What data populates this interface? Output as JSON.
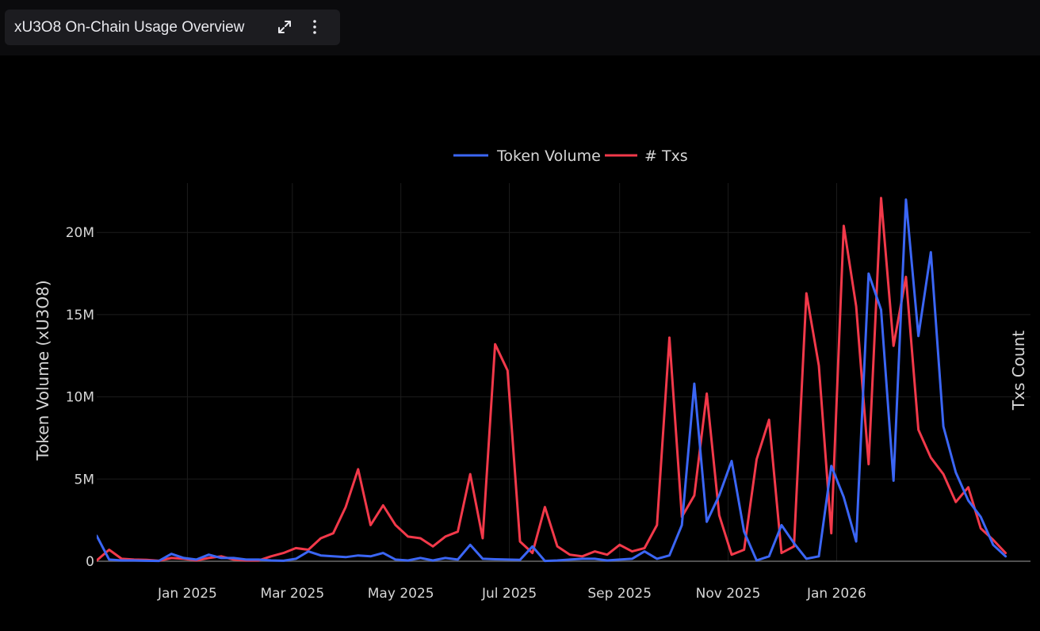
{
  "window": {
    "title": "xU3O8 On-Chain Usage Overview",
    "expand_icon": "expand-icon",
    "menu_icon": "vertical-dots-icon"
  },
  "colors": {
    "background": "#000000",
    "token_volume": "#3b66f5",
    "txs": "#f2394a",
    "text": "#d6d6d6"
  },
  "chart_data": {
    "type": "line",
    "legend_position": "top-center",
    "grid": true,
    "ylabel": "Token Volume (xU3O8)",
    "y2label": "Txs Count",
    "xlim": [
      "2024-11-11",
      "2026-04-20"
    ],
    "ylim": [
      0,
      23000000
    ],
    "y_ticks": [
      0,
      5000000,
      10000000,
      15000000,
      20000000
    ],
    "y_tick_labels": [
      "0",
      "5M",
      "10M",
      "15M",
      "20M"
    ],
    "x_ticks": [
      "2025-01-01",
      "2025-03-01",
      "2025-05-01",
      "2025-07-01",
      "2025-09-01",
      "2025-11-01",
      "2026-01-01"
    ],
    "x_tick_labels": [
      "Jan 2025",
      "Mar 2025",
      "May 2025",
      "Jul 2025",
      "Sep 2025",
      "Nov 2025",
      "Jan 2026"
    ],
    "series": [
      {
        "name": "Token Volume",
        "color": "#3b66f5",
        "x": [
          "2024-11-11",
          "2024-11-18",
          "2024-11-25",
          "2024-12-02",
          "2024-12-09",
          "2024-12-16",
          "2024-12-23",
          "2024-12-30",
          "2025-01-06",
          "2025-01-13",
          "2025-01-20",
          "2025-01-27",
          "2025-02-03",
          "2025-02-10",
          "2025-02-17",
          "2025-02-24",
          "2025-03-03",
          "2025-03-10",
          "2025-03-17",
          "2025-03-24",
          "2025-03-31",
          "2025-04-07",
          "2025-04-14",
          "2025-04-21",
          "2025-04-28",
          "2025-05-05",
          "2025-05-12",
          "2025-05-19",
          "2025-05-26",
          "2025-06-02",
          "2025-06-09",
          "2025-06-16",
          "2025-06-23",
          "2025-06-30",
          "2025-07-07",
          "2025-07-14",
          "2025-07-21",
          "2025-07-28",
          "2025-08-04",
          "2025-08-11",
          "2025-08-18",
          "2025-08-25",
          "2025-09-01",
          "2025-09-08",
          "2025-09-15",
          "2025-09-22",
          "2025-09-29",
          "2025-10-06",
          "2025-10-13",
          "2025-10-20",
          "2025-10-27",
          "2025-11-03",
          "2025-11-10",
          "2025-11-17",
          "2025-11-24",
          "2025-12-01",
          "2025-12-08",
          "2025-12-15",
          "2025-12-22",
          "2025-12-29",
          "2026-01-05",
          "2026-01-12",
          "2026-01-19",
          "2026-01-26",
          "2026-02-02",
          "2026-02-09",
          "2026-02-16",
          "2026-02-23",
          "2026-03-02",
          "2026-03-09",
          "2026-03-16",
          "2026-03-23",
          "2026-03-30",
          "2026-04-06"
        ],
        "values": [
          1550000,
          100000,
          50000,
          50000,
          30000,
          20000,
          450000,
          200000,
          100000,
          400000,
          200000,
          200000,
          100000,
          100000,
          50000,
          30000,
          150000,
          600000,
          350000,
          300000,
          250000,
          350000,
          300000,
          500000,
          100000,
          50000,
          200000,
          50000,
          200000,
          100000,
          1000000,
          150000,
          120000,
          100000,
          80000,
          900000,
          20000,
          50000,
          100000,
          150000,
          150000,
          50000,
          100000,
          150000,
          600000,
          150000,
          350000,
          2200000,
          10800000,
          2400000,
          4000000,
          6100000,
          1800000,
          50000,
          300000,
          2200000,
          1100000,
          150000,
          300000,
          5800000,
          3900000,
          1200000,
          17500000,
          15300000,
          4900000,
          22000000,
          13700000,
          18800000,
          8200000,
          5400000,
          3700000,
          2700000,
          1000000,
          300000
        ]
      },
      {
        "name": "# Txs",
        "color": "#f2394a",
        "x": [
          "2024-11-11",
          "2024-11-18",
          "2024-11-25",
          "2024-12-02",
          "2024-12-09",
          "2024-12-16",
          "2024-12-23",
          "2024-12-30",
          "2025-01-06",
          "2025-01-13",
          "2025-01-20",
          "2025-01-27",
          "2025-02-03",
          "2025-02-10",
          "2025-02-17",
          "2025-02-24",
          "2025-03-03",
          "2025-03-10",
          "2025-03-17",
          "2025-03-24",
          "2025-03-31",
          "2025-04-07",
          "2025-04-14",
          "2025-04-21",
          "2025-04-28",
          "2025-05-05",
          "2025-05-12",
          "2025-05-19",
          "2025-05-26",
          "2025-06-02",
          "2025-06-09",
          "2025-06-16",
          "2025-06-23",
          "2025-06-30",
          "2025-07-07",
          "2025-07-14",
          "2025-07-21",
          "2025-07-28",
          "2025-08-04",
          "2025-08-11",
          "2025-08-18",
          "2025-08-25",
          "2025-09-01",
          "2025-09-08",
          "2025-09-15",
          "2025-09-22",
          "2025-09-29",
          "2025-10-06",
          "2025-10-13",
          "2025-10-20",
          "2025-10-27",
          "2025-11-03",
          "2025-11-10",
          "2025-11-17",
          "2025-11-24",
          "2025-12-01",
          "2025-12-08",
          "2025-12-15",
          "2025-12-22",
          "2025-12-29",
          "2026-01-05",
          "2026-01-12",
          "2026-01-19",
          "2026-01-26",
          "2026-02-02",
          "2026-02-09",
          "2026-02-16",
          "2026-02-23",
          "2026-03-02",
          "2026-03-09",
          "2026-03-16",
          "2026-03-23",
          "2026-03-30",
          "2026-04-06"
        ],
        "values": [
          50000,
          700000,
          150000,
          100000,
          80000,
          30000,
          200000,
          150000,
          50000,
          200000,
          300000,
          100000,
          50000,
          50000,
          300000,
          500000,
          800000,
          700000,
          1400000,
          1700000,
          3300000,
          5600000,
          2200000,
          3400000,
          2200000,
          1500000,
          1400000,
          900000,
          1500000,
          1800000,
          5300000,
          1400000,
          13200000,
          11600000,
          1200000,
          500000,
          3300000,
          900000,
          400000,
          300000,
          600000,
          400000,
          1000000,
          600000,
          800000,
          2200000,
          13600000,
          2700000,
          4000000,
          10200000,
          2800000,
          400000,
          700000,
          6200000,
          8600000,
          500000,
          900000,
          16300000,
          11900000,
          1700000,
          20400000,
          15500000,
          5900000,
          22100000,
          13100000,
          17300000,
          8000000,
          6300000,
          5300000,
          3600000,
          4500000,
          2000000,
          1300000,
          500000
        ]
      }
    ]
  }
}
